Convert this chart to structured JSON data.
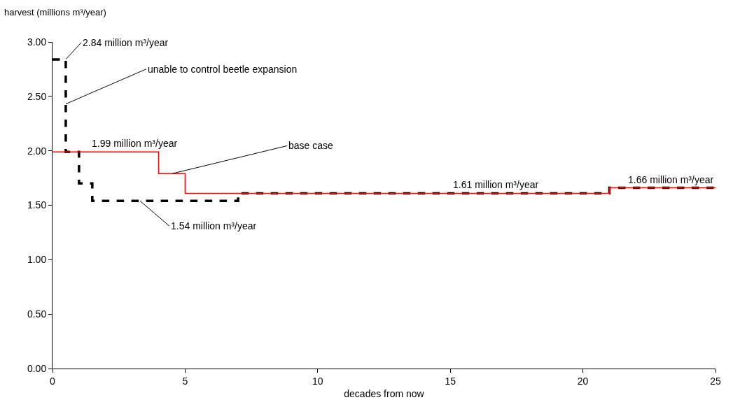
{
  "chart_data": {
    "type": "step",
    "xlabel": "decades from now",
    "ylabel": "harvest (millions m³/year)",
    "series": [
      {
        "x": [
          0,
          0.5,
          1,
          1.5,
          7,
          21,
          25
        ],
        "values": [
          2.84,
          1.99,
          1.7,
          1.54,
          1.61,
          1.66,
          1.66
        ],
        "color": "#000000",
        "line_style": "dashed"
      },
      {
        "x": [
          0,
          4,
          5,
          21,
          25
        ],
        "values": [
          1.99,
          1.79,
          1.61,
          1.66,
          1.66
        ],
        "color": "#ff0000",
        "line_style": "solid"
      }
    ],
    "xlim": [
      0,
      25
    ],
    "xticks": [
      0,
      5,
      10,
      15,
      20,
      25
    ],
    "ylim": [
      0,
      3
    ],
    "yticks": [
      {
        "value": 0,
        "label": "0.00"
      },
      {
        "value": 0.5,
        "label": "0.50"
      },
      {
        "value": 1,
        "label": "1.00"
      },
      {
        "value": 1.5,
        "label": "1.50"
      },
      {
        "value": 2,
        "label": "2.00"
      },
      {
        "value": 2.5,
        "label": "2.50"
      },
      {
        "value": 3,
        "label": "3.00"
      }
    ],
    "marker": "none",
    "annotations": [
      {
        "text": "2.84 million m³/year",
        "x": 0.5,
        "y": 2.84
      },
      {
        "text": "unable to control beetle expansion",
        "x": 0.5,
        "y": 2.43
      },
      {
        "text": "1.99 million m³/year",
        "x": 3.1,
        "y": 1.99
      },
      {
        "text": "base case",
        "x": 4.5,
        "y": 1.79
      },
      {
        "text": "1.54 million m³/year",
        "x": 3.3,
        "y": 1.54
      },
      {
        "text": "1.61 million m³/year",
        "x": 16.7,
        "y": 1.61
      },
      {
        "text": "1.66 million m³/year",
        "x": 23.3,
        "y": 1.66
      }
    ]
  }
}
